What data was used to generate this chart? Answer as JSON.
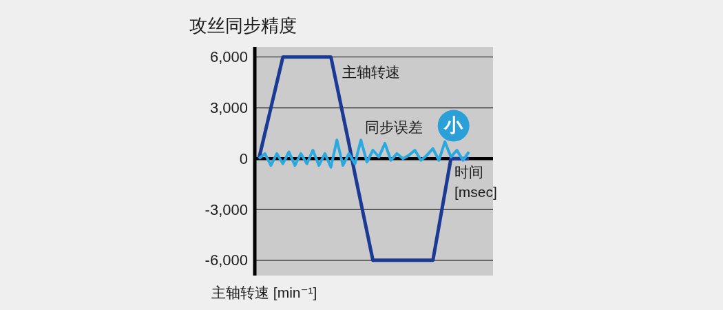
{
  "chart_data": {
    "type": "line",
    "title": "攻丝同步精度",
    "xlabel": "时间 [msec]",
    "ylabel": "主轴转速 [min⁻¹]",
    "annotations": [
      "小"
    ],
    "categories": [
      null,
      null,
      null,
      null,
      null,
      null,
      null,
      null,
      null,
      null,
      null,
      null,
      null,
      null,
      null,
      null,
      null,
      null,
      null,
      null,
      null,
      null,
      null,
      null,
      null,
      null,
      null,
      null,
      null,
      null,
      null,
      null,
      null,
      null,
      null,
      null
    ],
    "series": [
      {
        "name": "主轴转速",
        "color": "#1b3a94",
        "values": [
          0,
          1500,
          3000,
          4500,
          6000,
          6000,
          6000,
          6000,
          6000,
          6000,
          6000,
          6000,
          6000,
          4300,
          2600,
          900,
          -900,
          -2600,
          -4300,
          -6000,
          -6000,
          -6000,
          -6000,
          -6000,
          -6000,
          -6000,
          -6000,
          -6000,
          -6000,
          -6000,
          -4000,
          -2000,
          0,
          0,
          0,
          0
        ]
      },
      {
        "name": "同步误差",
        "color": "#2aa8e0",
        "values": [
          0,
          300,
          -400,
          300,
          -300,
          400,
          -400,
          300,
          -300,
          500,
          -400,
          300,
          -500,
          1100,
          -400,
          300,
          -300,
          1100,
          -200,
          500,
          100,
          900,
          -100,
          300,
          0,
          200,
          500,
          -100,
          200,
          600,
          -100,
          1000,
          100,
          500,
          -100,
          400
        ]
      }
    ],
    "ylim": [
      -6900,
      6600
    ],
    "yticks": [
      {
        "value": 6000,
        "label": "6,000"
      },
      {
        "value": 3000,
        "label": "3,000"
      },
      0,
      {
        "value": -3000,
        "label": "-3,000"
      },
      {
        "value": -6000,
        "label": "-6,000"
      }
    ],
    "grid": "y",
    "tick_labels": "y"
  }
}
